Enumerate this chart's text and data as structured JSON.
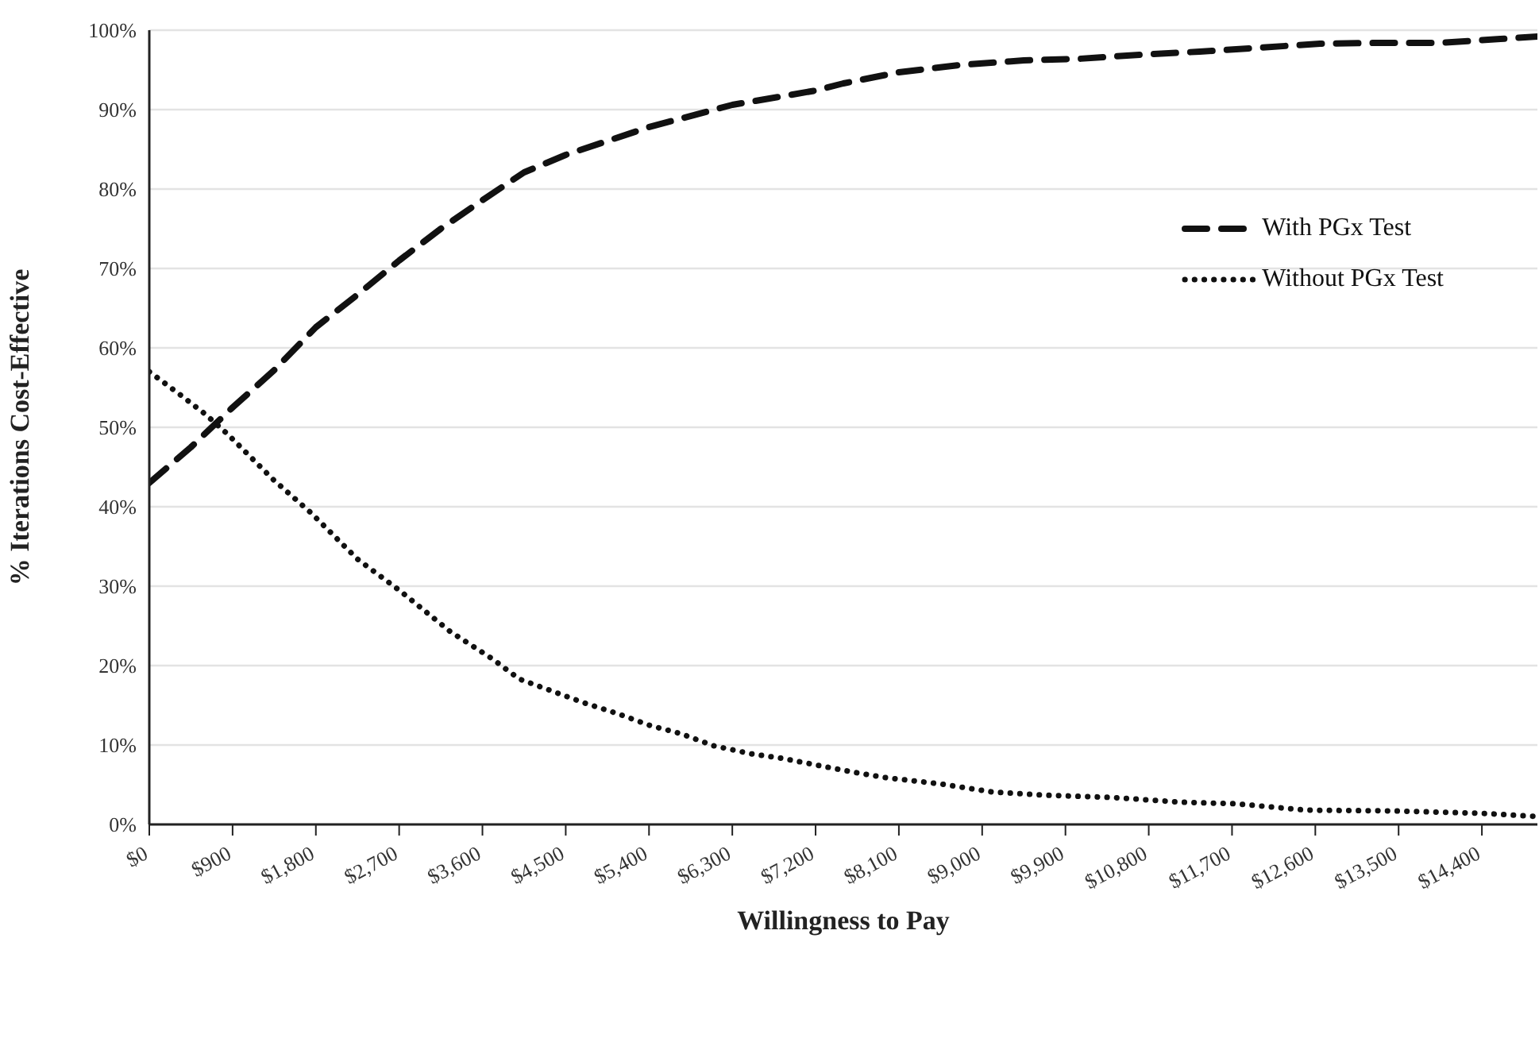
{
  "chart_data": {
    "type": "line",
    "xlabel": "Willingness to Pay",
    "ylabel": "% Iterations Cost-Effective",
    "xlim": [
      0,
      15000
    ],
    "xticks": [
      {
        "value": 0,
        "label": "$0"
      },
      {
        "value": 900,
        "label": "$900"
      },
      {
        "value": 1800,
        "label": "$1,800"
      },
      {
        "value": 2700,
        "label": "$2,700"
      },
      {
        "value": 3600,
        "label": "$3,600"
      },
      {
        "value": 4500,
        "label": "$4,500"
      },
      {
        "value": 5400,
        "label": "$5,400"
      },
      {
        "value": 6300,
        "label": "$6,300"
      },
      {
        "value": 7200,
        "label": "$7,200"
      },
      {
        "value": 8100,
        "label": "$8,100"
      },
      {
        "value": 9000,
        "label": "$9,000"
      },
      {
        "value": 9900,
        "label": "$9,900"
      },
      {
        "value": 10800,
        "label": "$10,800"
      },
      {
        "value": 11700,
        "label": "$11,700"
      },
      {
        "value": 12600,
        "label": "$12,600"
      },
      {
        "value": 13500,
        "label": "$13,500"
      },
      {
        "value": 14400,
        "label": "$14,400"
      }
    ],
    "ylim": [
      0,
      100
    ],
    "yticks": [
      {
        "value": 0,
        "label": "0%"
      },
      {
        "value": 10,
        "label": "10%"
      },
      {
        "value": 20,
        "label": "20%"
      },
      {
        "value": 30,
        "label": "30%"
      },
      {
        "value": 40,
        "label": "40%"
      },
      {
        "value": 50,
        "label": "50%"
      },
      {
        "value": 60,
        "label": "60%"
      },
      {
        "value": 70,
        "label": "70%"
      },
      {
        "value": 80,
        "label": "80%"
      },
      {
        "value": 90,
        "label": "90%"
      },
      {
        "value": 100,
        "label": "100%"
      }
    ],
    "grid": "y",
    "legend": "right",
    "marker": "none",
    "series": [
      {
        "name": "With PGx Test",
        "color": "#111111",
        "line_style": "dashed",
        "x": [
          0,
          450,
          900,
          1350,
          1800,
          2250,
          2700,
          3150,
          3600,
          4050,
          4500,
          5400,
          6300,
          7200,
          7500,
          8100,
          8750,
          9450,
          10050,
          10700,
          11350,
          12000,
          12650,
          13300,
          13950,
          14600,
          15000
        ],
        "values": [
          43,
          47.5,
          52.5,
          57.2,
          62.6,
          66.7,
          71,
          75,
          78.6,
          82.1,
          84.3,
          87.8,
          90.6,
          92.4,
          93.3,
          94.7,
          95.6,
          96.2,
          96.4,
          96.9,
          97.3,
          97.8,
          98.3,
          98.4,
          98.4,
          98.9,
          99.2
        ]
      },
      {
        "name": "Without PGx Test",
        "color": "#111111",
        "line_style": "dotted",
        "x": [
          0,
          300,
          600,
          850,
          1100,
          1350,
          1750,
          2250,
          2700,
          3250,
          3700,
          4000,
          4350,
          4700,
          5050,
          5400,
          5750,
          6100,
          6500,
          6850,
          7200,
          7600,
          7950,
          8550,
          9100,
          9650,
          10400,
          11150,
          11750,
          12500,
          13450,
          14400,
          15000
        ],
        "values": [
          57,
          54.4,
          51.7,
          49.1,
          46.2,
          43.3,
          39.2,
          33.4,
          29.5,
          24.3,
          20.9,
          18.3,
          16.8,
          15.3,
          14,
          12.5,
          11.4,
          9.9,
          8.9,
          8.3,
          7.5,
          6.6,
          5.9,
          5.1,
          4.1,
          3.7,
          3.4,
          2.8,
          2.6,
          1.8,
          1.7,
          1.4,
          1
        ]
      }
    ]
  }
}
